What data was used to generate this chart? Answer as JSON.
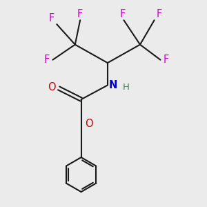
{
  "bg_color": "#ebebeb",
  "bond_color": "#1a1a1a",
  "N_color": "#0000cc",
  "O_color": "#cc0000",
  "F_color": "#cc00cc",
  "H_color": "#2e8b57",
  "line_width": 1.5,
  "figsize": [
    3.0,
    3.0
  ],
  "dpi": 100,
  "xlim": [
    0,
    10
  ],
  "ylim": [
    0,
    10
  ]
}
